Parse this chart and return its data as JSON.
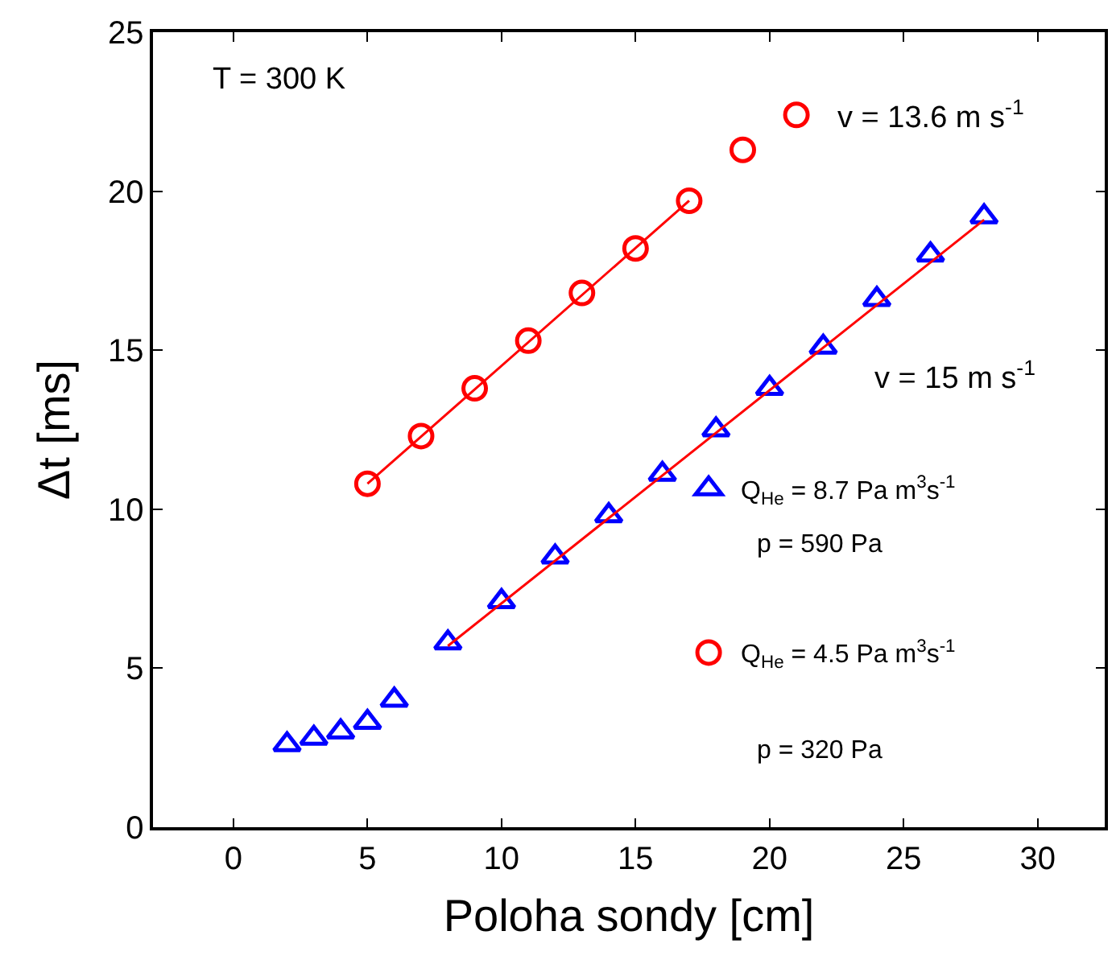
{
  "chart_data": {
    "type": "scatter",
    "xlabel": "Poloha sondy [cm]",
    "ylabel": "Δt [ms]",
    "xlim": [
      -3,
      32.5
    ],
    "xticks": [
      0,
      5,
      10,
      15,
      20,
      25,
      30
    ],
    "ylim": [
      0,
      25
    ],
    "yticks": [
      0,
      5,
      10,
      15,
      20,
      25
    ],
    "legend": "right",
    "series": [
      {
        "name": "Q$_{He}$ = 8.7 Pa m$^{3}$s$^{-1}$",
        "color": "#0000ff",
        "marker": "triangle",
        "x": [
          2,
          3,
          4,
          5,
          6,
          8,
          10,
          12,
          14,
          16,
          18,
          20,
          22,
          24,
          26,
          28
        ],
        "values": [
          2.6,
          2.8,
          3.0,
          3.3,
          4.0,
          5.8,
          7.1,
          8.5,
          9.8,
          11.1,
          12.5,
          13.8,
          15.1,
          16.6,
          18.0,
          19.2
        ]
      },
      {
        "name": "Q$_{He}$ = 4.5 Pa m$^{3}$s$^{-1}$",
        "color": "#ff0000",
        "marker": "circle",
        "x": [
          5,
          7,
          9,
          11,
          13,
          15,
          17,
          19,
          21
        ],
        "values": [
          10.8,
          12.3,
          13.8,
          15.3,
          16.8,
          18.2,
          19.7,
          21.3,
          22.4
        ]
      },
      {
        "type": "line",
        "color": "#ff0000",
        "x": [
          5,
          17
        ],
        "values": [
          10.8,
          19.7
        ]
      },
      {
        "type": "line",
        "color": "#ff0000",
        "x": [
          8,
          28
        ],
        "values": [
          5.7,
          19.1
        ]
      }
    ],
    "annotations": [
      "T = 300 K",
      "v = 13.6 m s$^{-1}$",
      "v = 15 m s$^{-1}$",
      "p = 590 Pa",
      "p = 320 Pa"
    ]
  }
}
